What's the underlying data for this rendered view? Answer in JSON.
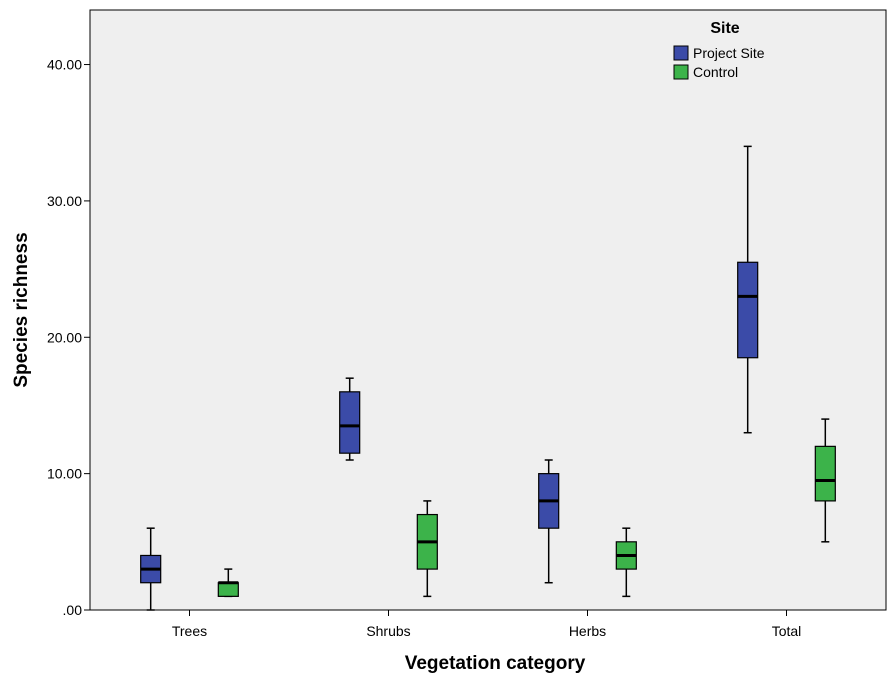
{
  "chart_data": {
    "type": "boxplot",
    "xlabel": "Vegetation category",
    "ylabel": "Species richness",
    "categories": [
      "Trees",
      "Shrubs",
      "Herbs",
      "Total"
    ],
    "ylim": [
      0,
      44
    ],
    "yticks": [
      0,
      10,
      20,
      30,
      40
    ],
    "ytick_labels": [
      ".00",
      "10.00",
      "20.00",
      "30.00",
      "40.00"
    ],
    "grid": false,
    "legend": {
      "title": "Site",
      "position": "top-right"
    },
    "plot_background": "#efefef",
    "series": [
      {
        "name": "Project Site",
        "color": "#3b4ba8",
        "boxes": [
          {
            "min": 0,
            "q1": 2,
            "median": 3,
            "q3": 4,
            "max": 6
          },
          {
            "min": 11,
            "q1": 11.5,
            "median": 13.5,
            "q3": 16,
            "max": 17
          },
          {
            "min": 2,
            "q1": 6,
            "median": 8,
            "q3": 10,
            "max": 11
          },
          {
            "min": 13,
            "q1": 18.5,
            "median": 23,
            "q3": 25.5,
            "max": 34
          }
        ]
      },
      {
        "name": "Control",
        "color": "#3cb34a",
        "boxes": [
          {
            "min": 1,
            "q1": 1,
            "median": 2,
            "q3": 2,
            "max": 3
          },
          {
            "min": 1,
            "q1": 3,
            "median": 5,
            "q3": 7,
            "max": 8
          },
          {
            "min": 1,
            "q1": 3,
            "median": 4,
            "q3": 5,
            "max": 6
          },
          {
            "min": 5,
            "q1": 8,
            "median": 9.5,
            "q3": 12,
            "max": 14
          }
        ]
      }
    ]
  }
}
